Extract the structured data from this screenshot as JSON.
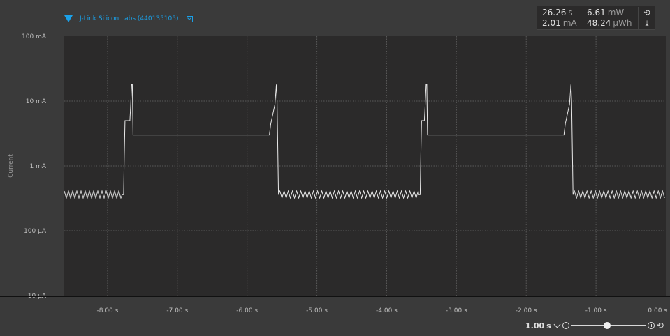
{
  "device": {
    "name": "J-Link Silicon Labs (440135105)",
    "icon_color": "#1aa0e8"
  },
  "stats": {
    "time": "26.26",
    "time_unit": "s",
    "current": "2.01",
    "current_unit": "mA",
    "power": "6.61",
    "power_unit": "mW",
    "energy": "48.24",
    "energy_unit": "µWh",
    "refresh_icon": "reset-icon",
    "export_icon": "download-icon"
  },
  "zoom": {
    "value": "1.00",
    "unit": "s",
    "slider_fraction": 0.48
  },
  "chart_data": {
    "type": "line",
    "title": "",
    "xlabel": "",
    "ylabel": "Current",
    "y_scale": "log",
    "ylim_mA": [
      0.01,
      100
    ],
    "xlim_s": [
      -8.62,
      0.0
    ],
    "y_ticks": [
      {
        "value": 100,
        "label": "100 mA"
      },
      {
        "value": 10,
        "label": "10 mA"
      },
      {
        "value": 1,
        "label": "1 mA"
      },
      {
        "value": 0.1,
        "label": "100 µA"
      },
      {
        "value": 0.01,
        "label": "10 µA"
      }
    ],
    "x_ticks": [
      {
        "value": -8,
        "label": "-8.00 s"
      },
      {
        "value": -7,
        "label": "-7.00 s"
      },
      {
        "value": -6,
        "label": "-6.00 s"
      },
      {
        "value": -5,
        "label": "-5.00 s"
      },
      {
        "value": -4,
        "label": "-4.00 s"
      },
      {
        "value": -3,
        "label": "-3.00 s"
      },
      {
        "value": -2,
        "label": "-2.00 s"
      },
      {
        "value": -1,
        "label": "-1.00 s"
      },
      {
        "value": 0,
        "label": "0.00 s"
      }
    ],
    "grid": true,
    "line_color": "#e8e8e8",
    "background": "#2b2a2a",
    "sleep_current_mA": 0.36,
    "sleep_ripple_mA": [
      0.32,
      0.41
    ],
    "active_current_mA": 3.0,
    "peak_current_mA": 18.0,
    "step_current_mA": 5.0,
    "bursts": [
      {
        "rise_s": -7.77,
        "peak_s": -7.65,
        "fall_s": -5.55
      },
      {
        "rise_s": -3.52,
        "peak_s": -3.43,
        "fall_s": -1.33
      }
    ],
    "spikes_s": [
      -5.64,
      -1.43
    ]
  }
}
